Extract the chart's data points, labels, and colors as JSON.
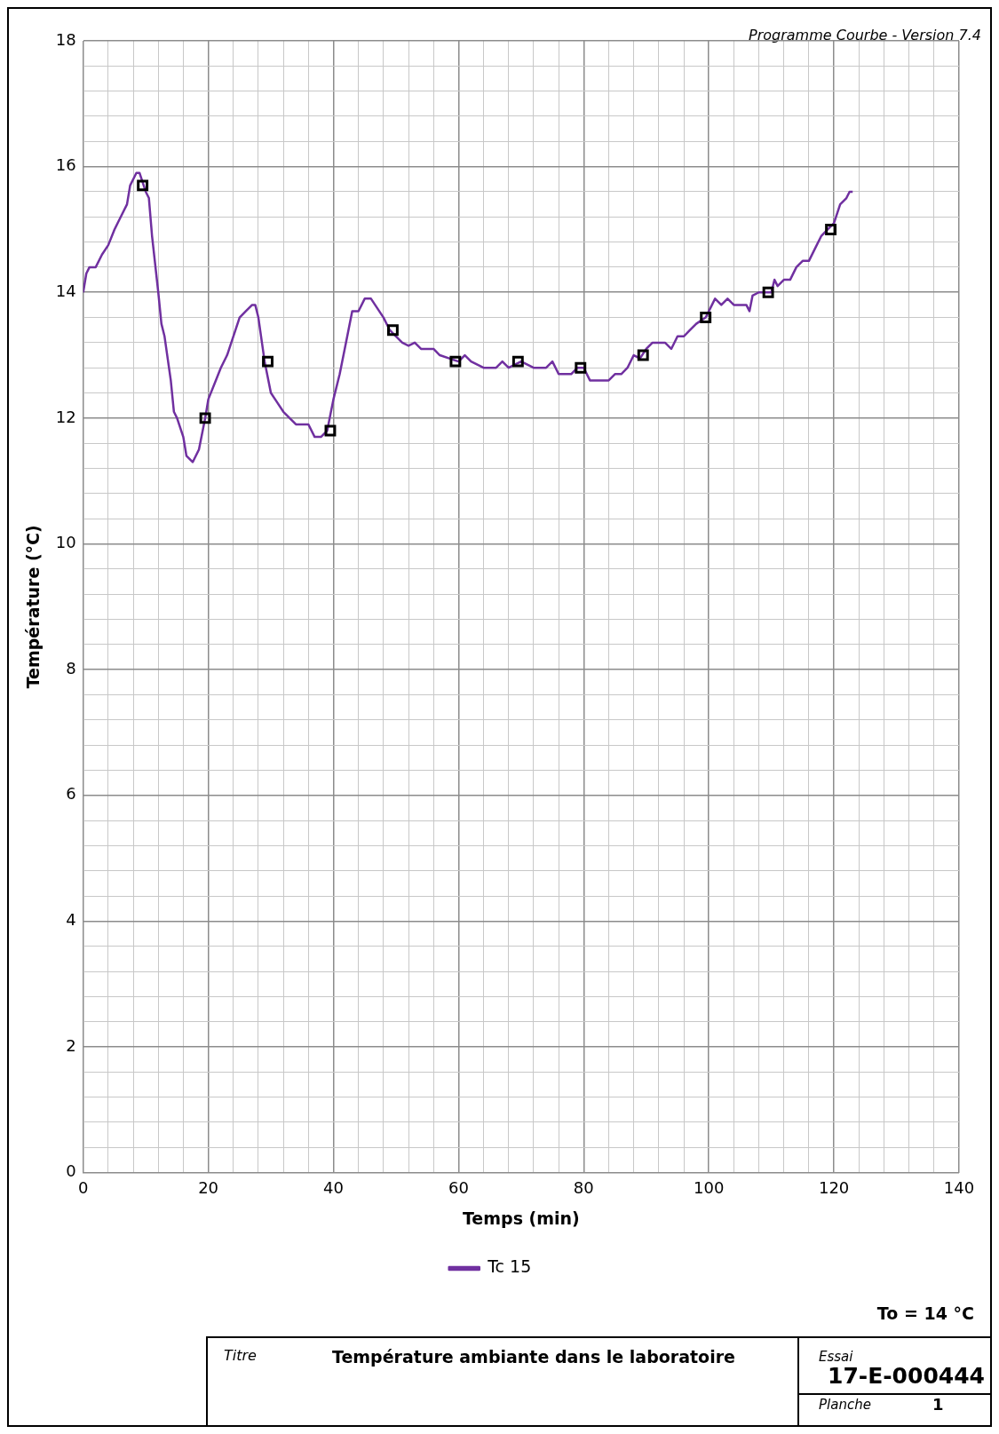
{
  "chart_data": {
    "type": "line",
    "title": "Température ambiante dans le laboratoire",
    "xlabel": "Temps (min)",
    "ylabel": "Température (°C)",
    "annotations": [
      "Programme Courbe - Version 7.4",
      "To = 14 °C",
      "Titre",
      "Essai",
      "17-E-000444",
      "Planche",
      "1"
    ],
    "xlim": [
      0,
      140
    ],
    "ylim": [
      0,
      18
    ],
    "xticks": [
      0,
      {
        "value": 4,
        "label": null
      },
      {
        "value": 8,
        "label": null
      },
      {
        "value": 12,
        "label": null
      },
      {
        "value": 16,
        "label": null
      },
      20,
      {
        "value": 24,
        "label": null
      },
      {
        "value": 28,
        "label": null
      },
      {
        "value": 32,
        "label": null
      },
      {
        "value": 36,
        "label": null
      },
      40,
      {
        "value": 44,
        "label": null
      },
      {
        "value": 48,
        "label": null
      },
      {
        "value": 52,
        "label": null
      },
      {
        "value": 56,
        "label": null
      },
      60,
      {
        "value": 64,
        "label": null
      },
      {
        "value": 68,
        "label": null
      },
      {
        "value": 72,
        "label": null
      },
      {
        "value": 76,
        "label": null
      },
      80,
      {
        "value": 84,
        "label": null
      },
      {
        "value": 88,
        "label": null
      },
      {
        "value": 92,
        "label": null
      },
      {
        "value": 96,
        "label": null
      },
      100,
      {
        "value": 104,
        "label": null
      },
      {
        "value": 108,
        "label": null
      },
      {
        "value": 112,
        "label": null
      },
      {
        "value": 116,
        "label": null
      },
      120,
      {
        "value": 124,
        "label": null
      },
      {
        "value": 128,
        "label": null
      },
      {
        "value": 132,
        "label": null
      },
      {
        "value": 136,
        "label": null
      },
      140
    ],
    "yticks": [
      0,
      {
        "value": 0.4,
        "label": null
      },
      {
        "value": 0.8,
        "label": null
      },
      {
        "value": 1.2,
        "label": null
      },
      {
        "value": 1.6,
        "label": null
      },
      2,
      {
        "value": 2.4,
        "label": null
      },
      {
        "value": 2.8,
        "label": null
      },
      {
        "value": 3.2,
        "label": null
      },
      {
        "value": 3.6,
        "label": null
      },
      4,
      {
        "value": 4.4,
        "label": null
      },
      {
        "value": 4.8,
        "label": null
      },
      {
        "value": 5.2,
        "label": null
      },
      {
        "value": 5.6,
        "label": null
      },
      6,
      {
        "value": 6.4,
        "label": null
      },
      {
        "value": 6.8,
        "label": null
      },
      {
        "value": 7.2,
        "label": null
      },
      {
        "value": 7.6,
        "label": null
      },
      8,
      {
        "value": 8.4,
        "label": null
      },
      {
        "value": 8.8,
        "label": null
      },
      {
        "value": 9.2,
        "label": null
      },
      {
        "value": 9.6,
        "label": null
      },
      10,
      {
        "value": 10.4,
        "label": null
      },
      {
        "value": 10.8,
        "label": null
      },
      {
        "value": 11.2,
        "label": null
      },
      {
        "value": 11.6,
        "label": null
      },
      12,
      {
        "value": 12.4,
        "label": null
      },
      {
        "value": 12.8,
        "label": null
      },
      {
        "value": 13.2,
        "label": null
      },
      {
        "value": 13.6,
        "label": null
      },
      14,
      {
        "value": 14.4,
        "label": null
      },
      {
        "value": 14.8,
        "label": null
      },
      {
        "value": 15.2,
        "label": null
      },
      {
        "value": 15.6,
        "label": null
      },
      16,
      {
        "value": 16.4,
        "label": null
      },
      {
        "value": 16.8,
        "label": null
      },
      {
        "value": 17.2,
        "label": null
      },
      {
        "value": 17.6,
        "label": null
      },
      18
    ],
    "grid": true,
    "legend": "bottom",
    "line_style": "solid",
    "series": [
      {
        "name": "Tc 15",
        "type": "line",
        "marker": "none",
        "color": "#7030a0",
        "x": [
          0,
          0.5,
          1,
          2,
          3,
          4,
          5,
          6,
          7,
          7.5,
          8.5,
          9,
          10,
          10.5,
          11,
          12,
          12.5,
          13,
          14,
          14.5,
          15,
          16,
          16.5,
          17.5,
          18.5,
          19.5,
          20,
          21,
          22,
          23,
          24,
          25,
          26,
          27,
          27.5,
          28,
          29,
          30,
          31,
          32,
          33,
          34,
          36,
          37,
          38,
          39,
          40,
          41,
          42,
          43,
          44,
          45,
          46,
          48,
          49,
          50,
          51,
          52,
          53,
          54,
          56,
          57,
          60,
          61,
          62,
          64,
          66,
          67,
          68,
          70,
          72,
          74,
          75,
          76,
          78,
          79,
          80,
          81,
          84,
          85,
          86,
          87,
          88,
          89,
          90,
          91,
          93,
          94,
          95,
          96,
          97,
          98,
          99.5,
          101,
          102,
          103,
          104,
          106,
          106.5,
          107,
          108,
          110,
          110.5,
          111,
          112,
          113,
          114,
          115,
          116,
          117,
          118,
          119,
          120,
          121,
          122,
          122.5,
          123
        ],
        "values": [
          14.0,
          14.3,
          14.4,
          14.4,
          14.6,
          14.75,
          15.0,
          15.2,
          15.4,
          15.7,
          15.9,
          15.9,
          15.6,
          15.5,
          14.9,
          14.0,
          13.5,
          13.3,
          12.6,
          12.1,
          12.0,
          11.7,
          11.4,
          11.3,
          11.5,
          12.0,
          12.3,
          12.55,
          12.8,
          13.0,
          13.3,
          13.6,
          13.7,
          13.8,
          13.8,
          13.6,
          12.9,
          12.4,
          12.25,
          12.1,
          12.0,
          11.9,
          11.9,
          11.7,
          11.7,
          11.8,
          12.3,
          12.7,
          13.2,
          13.7,
          13.7,
          13.9,
          13.9,
          13.6,
          13.4,
          13.3,
          13.2,
          13.15,
          13.2,
          13.1,
          13.1,
          13.0,
          12.9,
          13.0,
          12.9,
          12.8,
          12.8,
          12.9,
          12.8,
          12.9,
          12.8,
          12.8,
          12.9,
          12.7,
          12.7,
          12.8,
          12.8,
          12.6,
          12.6,
          12.7,
          12.7,
          12.8,
          13.0,
          12.95,
          13.1,
          13.2,
          13.2,
          13.1,
          13.3,
          13.3,
          13.4,
          13.5,
          13.6,
          13.9,
          13.8,
          13.9,
          13.8,
          13.8,
          13.7,
          13.95,
          14.0,
          14.0,
          14.2,
          14.1,
          14.2,
          14.2,
          14.4,
          14.5,
          14.5,
          14.7,
          14.9,
          15.0,
          15.1,
          15.4,
          15.5,
          15.6,
          15.6
        ]
      },
      {
        "type": "scatter",
        "marker": "square",
        "color": "#000000",
        "x": [
          9.5,
          19.5,
          29.5,
          39.5,
          49.5,
          59.5,
          69.5,
          79.5,
          89.5,
          99.5,
          109.5,
          119.5
        ],
        "values": [
          15.7,
          12.0,
          12.9,
          11.8,
          13.4,
          12.9,
          12.9,
          12.8,
          13.0,
          13.6,
          14.0,
          15.0
        ]
      }
    ]
  }
}
